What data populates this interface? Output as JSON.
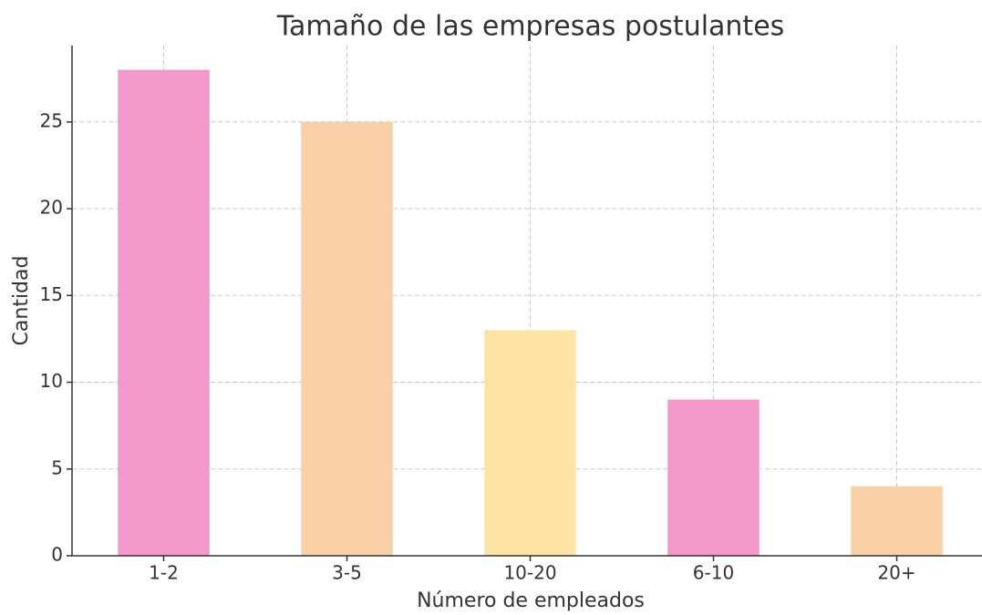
{
  "chart_data": {
    "type": "bar",
    "title": "Tamaño de las empresas postulantes",
    "x_label": "Número de empleados",
    "y_label": "Cantidad",
    "categories": [
      "1-2",
      "3-5",
      "10-20",
      "6-10",
      "20+"
    ],
    "values": [
      28,
      25,
      13,
      9,
      4
    ],
    "colors": [
      "#f497ca",
      "#f9d0a5",
      "#fee3a6",
      "#f497ca",
      "#f9d0a5"
    ],
    "ylim": [
      0,
      29.4
    ],
    "yticks": [
      0,
      5,
      10,
      15,
      20,
      25
    ],
    "grid": true
  }
}
